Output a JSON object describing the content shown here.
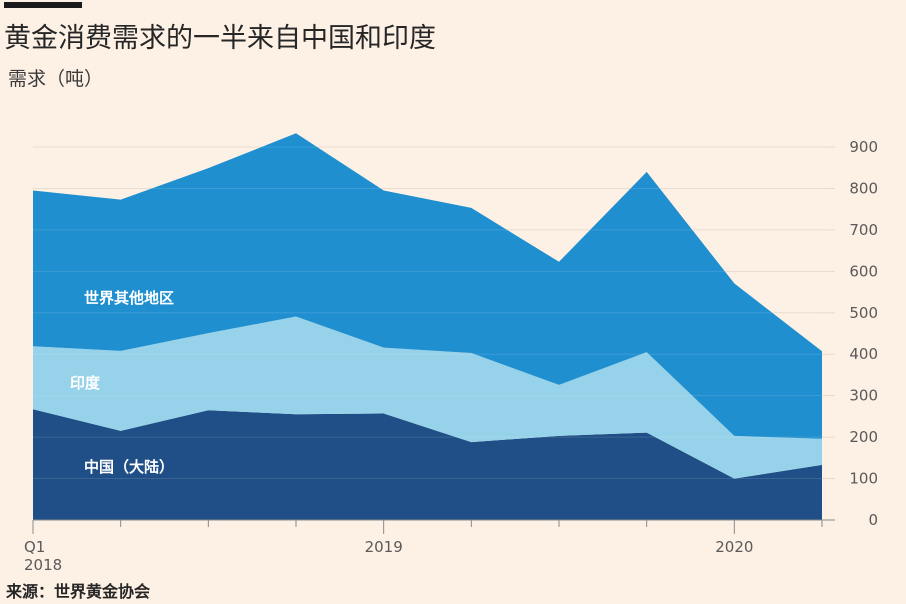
{
  "header": {
    "title": "黄金消费需求的一半来自中国和印度",
    "subtitle": "需求（吨）"
  },
  "footer": {
    "source": "来源：世界黄金协会"
  },
  "chart_data": {
    "type": "area",
    "stacked": true,
    "title": "黄金消费需求的一半来自中国和印度",
    "ylabel": "需求（吨）",
    "xlabel": "",
    "ylim": [
      0,
      900
    ],
    "yticks": [
      0,
      100,
      200,
      300,
      400,
      500,
      600,
      700,
      800,
      900
    ],
    "y_axis_side": "right",
    "grid": true,
    "x": [
      "Q1 2018",
      "Q2 2018",
      "Q3 2018",
      "Q4 2018",
      "Q1 2019",
      "Q2 2019",
      "Q3 2019",
      "Q4 2019",
      "Q1 2020",
      "Q2 2020"
    ],
    "xtick_labels": [
      {
        "index": 0,
        "line1": "Q1",
        "line2": "2018"
      },
      {
        "index": 4,
        "line1": "2019",
        "line2": ""
      },
      {
        "index": 8,
        "line1": "2020",
        "line2": ""
      }
    ],
    "series": [
      {
        "name": "中国（大陆）",
        "color": "#1f4f86",
        "values": [
          267,
          215,
          265,
          255,
          257,
          188,
          203,
          211,
          100,
          133
        ]
      },
      {
        "name": "印度",
        "color": "#96d2ea",
        "values": [
          152,
          193,
          186,
          236,
          159,
          215,
          123,
          194,
          103,
          63
        ]
      },
      {
        "name": "世界其他地区",
        "color": "#1f8fd0",
        "values": [
          376,
          365,
          398,
          442,
          379,
          350,
          297,
          435,
          368,
          211
        ]
      }
    ],
    "labels": [
      "世界其他地区",
      "印度",
      "中国（大陆）"
    ]
  }
}
